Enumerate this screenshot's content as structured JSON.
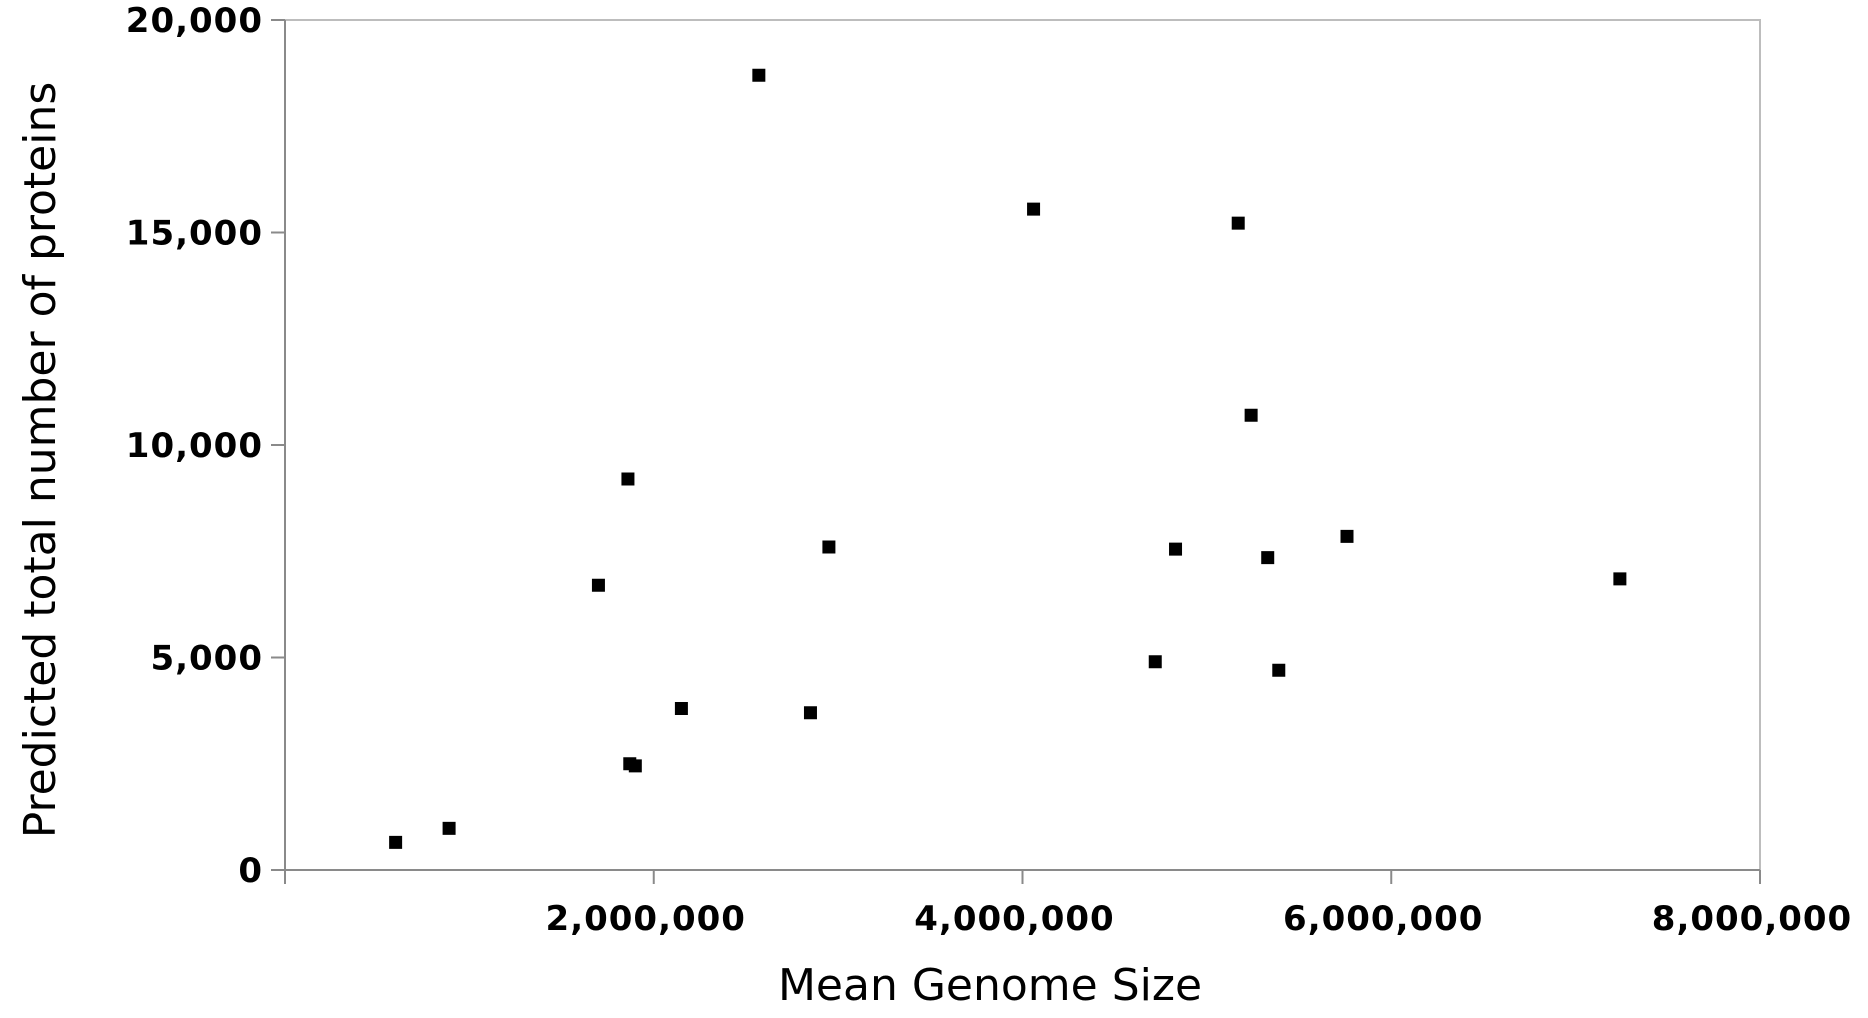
{
  "chart_data": {
    "type": "scatter",
    "title": "",
    "xlabel": "Mean Genome Size",
    "ylabel": "Predicted total number of proteins",
    "xlim": [
      0,
      8000000
    ],
    "ylim": [
      0,
      20000
    ],
    "x_ticks": [
      2000000,
      4000000,
      6000000,
      8000000
    ],
    "x_tick_labels": [
      "2,000,000",
      "4,000,000",
      "6,000,000",
      "8,000,000"
    ],
    "y_ticks": [
      0,
      5000,
      10000,
      15000,
      20000
    ],
    "y_tick_labels": [
      "0",
      "5,000",
      "10,000",
      "15,000",
      "20,000"
    ],
    "grid": false,
    "legend": "none",
    "marker": "square",
    "marker_color": "#000000",
    "series": [
      {
        "points": [
          {
            "x": 600000,
            "y": 650
          },
          {
            "x": 890000,
            "y": 980
          },
          {
            "x": 1700000,
            "y": 6700
          },
          {
            "x": 1860000,
            "y": 9200
          },
          {
            "x": 1870000,
            "y": 2500
          },
          {
            "x": 1900000,
            "y": 2450
          },
          {
            "x": 2150000,
            "y": 3800
          },
          {
            "x": 2570000,
            "y": 18700
          },
          {
            "x": 2850000,
            "y": 3700
          },
          {
            "x": 2950000,
            "y": 7600
          },
          {
            "x": 4060000,
            "y": 15550
          },
          {
            "x": 4720000,
            "y": 4900
          },
          {
            "x": 4830000,
            "y": 7550
          },
          {
            "x": 5170000,
            "y": 15220
          },
          {
            "x": 5240000,
            "y": 10700
          },
          {
            "x": 5330000,
            "y": 7350
          },
          {
            "x": 5390000,
            "y": 4700
          },
          {
            "x": 5760000,
            "y": 7850
          },
          {
            "x": 7240000,
            "y": 6850
          }
        ]
      }
    ]
  }
}
